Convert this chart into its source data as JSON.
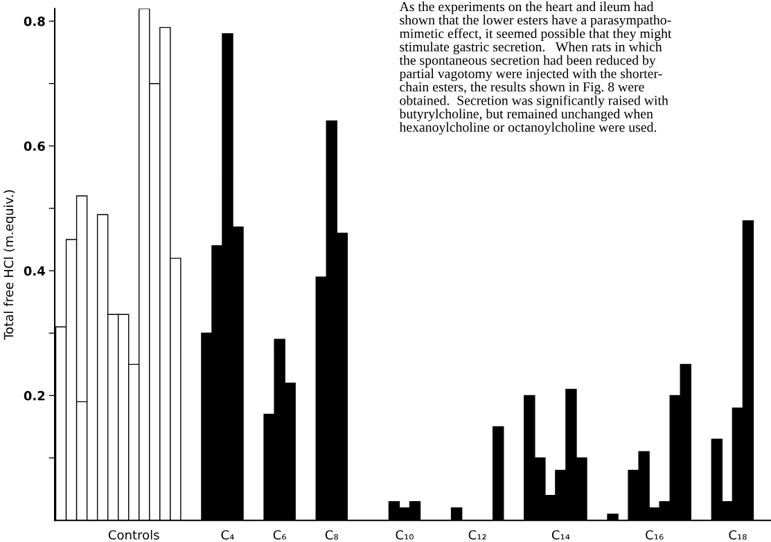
{
  "chart_data": {
    "type": "bar",
    "ylabel": "Total free HCl (m.equiv.)",
    "stacked": true,
    "categories": [
      null,
      null,
      null,
      null,
      null,
      null,
      null,
      "Controls",
      null,
      null,
      null,
      null,
      null,
      null,
      null,
      null,
      "C₄",
      null,
      null,
      null,
      null,
      "C₆",
      null,
      null,
      null,
      null,
      "C₈",
      null,
      null,
      null,
      null,
      null,
      null,
      "C₁₀",
      null,
      null,
      null,
      null,
      null,
      null,
      "C₁₂",
      null,
      null,
      null,
      null,
      null,
      null,
      null,
      "C₁₄",
      null,
      null,
      null,
      null,
      null,
      null,
      null,
      null,
      "C₁₆",
      null,
      null,
      null,
      null,
      null,
      null,
      null,
      "C₁₈",
      null
    ],
    "series": [
      {
        "colors": [
          "#ffffff",
          "#ffffff",
          "#ffffff",
          "#ffffff",
          "#ffffff",
          "#ffffff",
          "#ffffff",
          "#ffffff",
          "#ffffff",
          "#ffffff",
          "#ffffff",
          "#ffffff",
          "#000000",
          "#000000",
          "#000000",
          "#000000",
          "#000000",
          "#000000",
          "#000000",
          "#000000",
          "#000000",
          "#000000",
          "#000000",
          "#000000",
          "#000000",
          "#000000",
          "#000000",
          "#000000",
          "#000000",
          "#000000",
          "#000000",
          "#000000",
          "#000000",
          "#000000",
          "#000000",
          "#000000",
          "#000000",
          "#000000",
          "#000000",
          "#000000",
          "#000000",
          "#000000",
          "#000000",
          "#000000",
          "#000000",
          "#000000",
          "#000000",
          "#000000",
          "#000000",
          "#000000",
          "#000000",
          "#000000",
          "#000000",
          "#000000",
          "#000000",
          "#000000",
          "#000000",
          "#000000",
          "#000000",
          "#000000",
          "#000000",
          "#000000",
          "#000000",
          "#000000",
          "#000000",
          "#000000",
          "#000000"
        ],
        "values": [
          0.31,
          0.45,
          0.19,
          null,
          0.49,
          0.33,
          0.33,
          0.25,
          0.82,
          0.7,
          0.79,
          0.42,
          null,
          null,
          0.3,
          0.44,
          0.78,
          0.47,
          null,
          null,
          0.17,
          0.29,
          0.22,
          null,
          null,
          0.39,
          0.64,
          0.46,
          null,
          null,
          null,
          null,
          0.03,
          0.02,
          0.03,
          null,
          null,
          null,
          0.02,
          null,
          null,
          null,
          0.15,
          null,
          null,
          0.2,
          0.1,
          0.04,
          0.08,
          0.21,
          0.1,
          null,
          null,
          0.01,
          null,
          0.08,
          0.11,
          0.02,
          0.03,
          0.2,
          0.25,
          null,
          null,
          0.13,
          0.03,
          0.18,
          0.48
        ]
      },
      {
        "color": "#ffffff",
        "values": [
          null,
          null,
          0.33,
          null,
          null,
          null,
          null,
          null,
          null,
          null,
          null,
          null,
          null,
          null,
          null,
          null,
          null,
          null,
          null,
          null,
          null,
          null,
          null,
          null,
          null,
          null,
          null,
          null,
          null,
          null,
          null,
          null,
          null,
          null,
          null,
          null,
          null,
          null,
          null,
          null,
          null,
          null,
          null,
          null,
          null,
          null,
          null,
          null,
          null,
          null,
          null,
          null,
          null,
          null,
          null,
          null,
          null,
          null,
          null,
          null,
          null,
          null,
          null,
          null,
          null,
          null,
          null
        ]
      }
    ],
    "ylim": [
      0,
      0.82
    ],
    "yticks": [
      {
        "value": 0.1,
        "label": null
      },
      0.2,
      {
        "value": 0.3,
        "label": null
      },
      0.4,
      {
        "value": 0.5,
        "label": null
      },
      0.6,
      {
        "value": 0.7,
        "label": null
      },
      0.8
    ],
    "annotations": [
      "As the experiments on the heart and ileum had\nshown that the lower esters have a parasympatho-\nmimetic effect, it seemed possible that they might\nstimulate gastric secretion.   When rats in which\nthe spontaneous secretion had been reduced by\npartial vagotomy were injected with the shorter-\nchain esters, the results shown in Fig. 8 were\nobtained.  Secretion was significantly raised with\nbutyrylcholine, but remained unchanged when\nhexanoylcholine or octanoylcholine were used."
    ]
  }
}
